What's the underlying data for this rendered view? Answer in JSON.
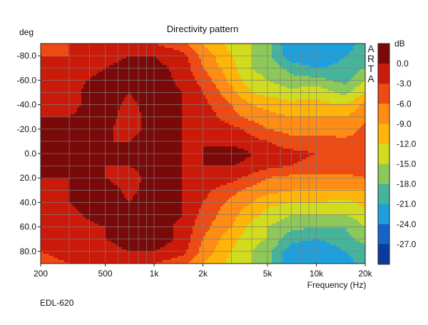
{
  "chart_data": {
    "type": "heatmap",
    "title": "Directivity pattern",
    "xlabel": "Frequency (Hz)",
    "ylabel": "deg",
    "x_scale": "log",
    "xlim": [
      200,
      20000
    ],
    "ylim": [
      -90,
      90
    ],
    "x_ticks": [
      {
        "value": 200,
        "label": "200"
      },
      {
        "value": 500,
        "label": "500"
      },
      {
        "value": 1000,
        "label": "1k"
      },
      {
        "value": 2000,
        "label": "2k"
      },
      {
        "value": 5000,
        "label": "5k"
      },
      {
        "value": 10000,
        "label": "10k"
      },
      {
        "value": 20000,
        "label": "20k"
      }
    ],
    "y_ticks": [
      {
        "value": -80,
        "label": "-80.0"
      },
      {
        "value": -60,
        "label": "-60.0"
      },
      {
        "value": -40,
        "label": "-40.0"
      },
      {
        "value": -20,
        "label": "-20.0"
      },
      {
        "value": 0,
        "label": "0.0"
      },
      {
        "value": 20,
        "label": "20.0"
      },
      {
        "value": 40,
        "label": "40.0"
      },
      {
        "value": 60,
        "label": "60.0"
      },
      {
        "value": 80,
        "label": "80.0"
      }
    ],
    "grid": true,
    "watermark": "ARTA",
    "colorbar": {
      "unit_label": "dB",
      "levels": [
        {
          "label": "0.0",
          "color": "#7a0a0a"
        },
        {
          "label": "-3.0",
          "color": "#cc1a0a"
        },
        {
          "label": "-6.0",
          "color": "#ee4a14"
        },
        {
          "label": "-9.0",
          "color": "#ff8c14"
        },
        {
          "label": "-12.0",
          "color": "#ffb40a"
        },
        {
          "label": "-15.0",
          "color": "#d2dc1e"
        },
        {
          "label": "-18.0",
          "color": "#8cc85a"
        },
        {
          "label": "-21.0",
          "color": "#46b49b"
        },
        {
          "label": "-24.0",
          "color": "#1ea0dc"
        },
        {
          "label": "-27.0",
          "color": "#1464c8"
        },
        {
          "label": "",
          "color": "#0a3c9b"
        }
      ]
    },
    "frequencies_hz": [
      200,
      300,
      500,
      700,
      1000,
      1500,
      2000,
      3000,
      4000,
      5000,
      7000,
      10000,
      15000,
      20000
    ],
    "angles_deg": [
      -90,
      -80,
      -70,
      -60,
      -50,
      -40,
      -30,
      -20,
      -10,
      0,
      10,
      20,
      30,
      40,
      50,
      60,
      70,
      80,
      90
    ],
    "attenuation_db": [
      [
        -6,
        -6,
        -6,
        -6,
        -6,
        -8,
        -12,
        -16,
        -18,
        -20,
        -27,
        -27,
        -26,
        -22
      ],
      [
        -6,
        -6,
        -4,
        -3,
        -3,
        -5,
        -10,
        -15,
        -18,
        -20,
        -26,
        -27,
        -24,
        -22
      ],
      [
        -5,
        -5,
        -3,
        -2,
        -2,
        -4,
        -9,
        -14,
        -18,
        -19,
        -22,
        -24,
        -23,
        -21
      ],
      [
        -5,
        -4,
        -2,
        -1,
        -1,
        -4,
        -7,
        -13,
        -17,
        -18,
        -20,
        -20,
        -22,
        -18
      ],
      [
        -4,
        -4,
        -1,
        -3,
        -1,
        -3,
        -6,
        -11,
        -15,
        -16,
        -17,
        -16,
        -19,
        -15
      ],
      [
        -4,
        -4,
        -1,
        -4,
        -1,
        -3,
        -5,
        -9,
        -12,
        -13,
        -14,
        -14,
        -15,
        -11
      ],
      [
        -3,
        -3,
        -1,
        -5,
        -1,
        -3,
        -4,
        -8,
        -10,
        -11,
        -12,
        -12,
        -12,
        -10
      ],
      [
        -3,
        -1,
        -2,
        -5,
        -1,
        -3,
        -3,
        -5,
        -7,
        -9,
        -10,
        -10,
        -11,
        -8
      ],
      [
        -3,
        -1,
        -3,
        -3,
        -1,
        -3,
        -3,
        -4,
        -5,
        -6,
        -8,
        -8,
        -8,
        -8
      ],
      [
        -3,
        -1,
        -3,
        -2,
        -1,
        -3,
        -3,
        -1,
        -3,
        -4,
        -5,
        -6,
        -6,
        -6
      ],
      [
        -3,
        -1,
        -3,
        -3,
        -1,
        -3,
        -3,
        -3,
        -4,
        -5,
        -6,
        -7,
        -7,
        -7
      ],
      [
        -3,
        -3,
        -3,
        -5,
        -1,
        -3,
        -3,
        -5,
        -7,
        -9,
        -10,
        -10,
        -10,
        -9
      ],
      [
        -3,
        -3,
        -1,
        -4,
        -1,
        -3,
        -5,
        -8,
        -10,
        -11,
        -12,
        -12,
        -12,
        -12
      ],
      [
        -3,
        -3,
        -1,
        -3,
        -1,
        -3,
        -6,
        -10,
        -12,
        -14,
        -15,
        -15,
        -16,
        -14
      ],
      [
        -4,
        -4,
        -1,
        -1,
        -1,
        -3,
        -7,
        -11,
        -14,
        -16,
        -18,
        -18,
        -18,
        -16
      ],
      [
        -5,
        -5,
        -3,
        -1,
        -1,
        -4,
        -8,
        -12,
        -16,
        -18,
        -20,
        -21,
        -21,
        -18
      ],
      [
        -5,
        -5,
        -3,
        -2,
        -1,
        -4,
        -9,
        -14,
        -17,
        -18,
        -23,
        -24,
        -22,
        -20
      ],
      [
        -6,
        -5,
        -4,
        -3,
        -3,
        -5,
        -10,
        -15,
        -18,
        -20,
        -26,
        -27,
        -24,
        -22
      ],
      [
        -7,
        -6,
        -6,
        -6,
        -6,
        -8,
        -12,
        -16,
        -18,
        -20,
        -27,
        -27,
        -26,
        -22
      ]
    ],
    "footnote": "EDL-620"
  }
}
